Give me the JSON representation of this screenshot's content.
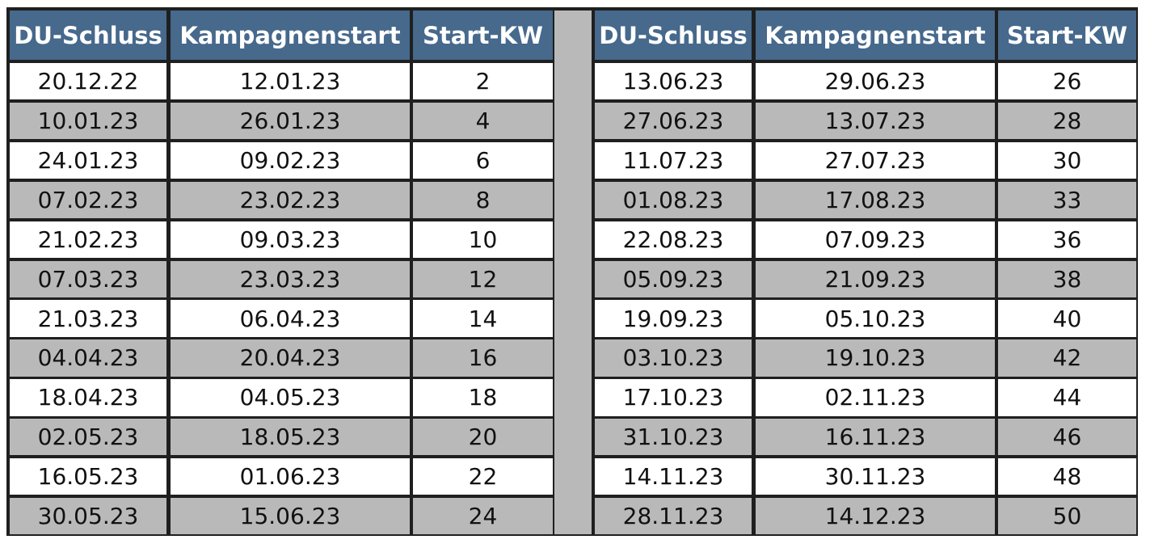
{
  "table": {
    "headers": [
      "DU-Schluss",
      "Kampagnenstart",
      "Start-KW",
      "DU-Schluss",
      "Kampagnenstart",
      "Start-KW"
    ],
    "rows": [
      [
        "20.12.22",
        "12.01.23",
        "2",
        "13.06.23",
        "29.06.23",
        "26"
      ],
      [
        "10.01.23",
        "26.01.23",
        "4",
        "27.06.23",
        "13.07.23",
        "28"
      ],
      [
        "24.01.23",
        "09.02.23",
        "6",
        "11.07.23",
        "27.07.23",
        "30"
      ],
      [
        "07.02.23",
        "23.02.23",
        "8",
        "01.08.23",
        "17.08.23",
        "33"
      ],
      [
        "21.02.23",
        "09.03.23",
        "10",
        "22.08.23",
        "07.09.23",
        "36"
      ],
      [
        "07.03.23",
        "23.03.23",
        "12",
        "05.09.23",
        "21.09.23",
        "38"
      ],
      [
        "21.03.23",
        "06.04.23",
        "14",
        "19.09.23",
        "05.10.23",
        "40"
      ],
      [
        "04.04.23",
        "20.04.23",
        "16",
        "03.10.23",
        "19.10.23",
        "42"
      ],
      [
        "18.04.23",
        "04.05.23",
        "18",
        "17.10.23",
        "02.11.23",
        "44"
      ],
      [
        "02.05.23",
        "18.05.23",
        "20",
        "31.10.23",
        "16.11.23",
        "46"
      ],
      [
        "16.05.23",
        "01.06.23",
        "22",
        "14.11.23",
        "30.11.23",
        "48"
      ],
      [
        "30.05.23",
        "15.06.23",
        "24",
        "28.11.23",
        "14.12.23",
        "50"
      ]
    ]
  },
  "colors": {
    "header_bg": "#46698c",
    "header_text": "#ffffff",
    "stripe_white": "#ffffff",
    "stripe_grey": "#b9b9b9",
    "border": "#1f1f1f"
  }
}
